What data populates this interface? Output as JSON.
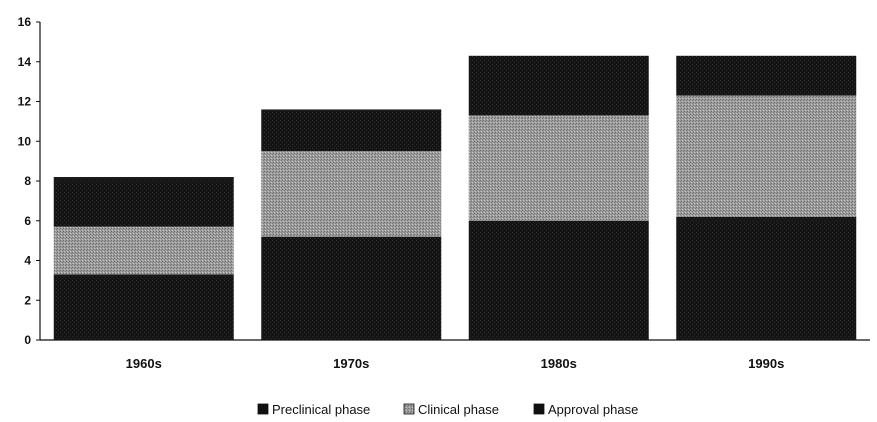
{
  "chart_data": {
    "type": "bar",
    "stacked": true,
    "categories": [
      "1960s",
      "1970s",
      "1980s",
      "1990s"
    ],
    "series": [
      {
        "name": "Preclinical phase",
        "values": [
          3.3,
          5.2,
          6.0,
          6.2
        ]
      },
      {
        "name": "Clinical phase",
        "values": [
          2.4,
          4.3,
          5.3,
          6.1
        ]
      },
      {
        "name": "Approval phase",
        "values": [
          2.5,
          2.1,
          3.0,
          2.0
        ]
      }
    ],
    "ylim": [
      0,
      16
    ],
    "yticks": [
      "0",
      "2",
      "4",
      "6",
      "8",
      "10",
      "12",
      "14",
      "16"
    ],
    "title": "",
    "xlabel": "",
    "ylabel": "",
    "grid": false,
    "legend_position": "bottom"
  },
  "colors": {
    "Preclinical phase": "#141414",
    "Clinical phase": "#9a9a9a",
    "Approval phase": "#1c1c1c"
  }
}
